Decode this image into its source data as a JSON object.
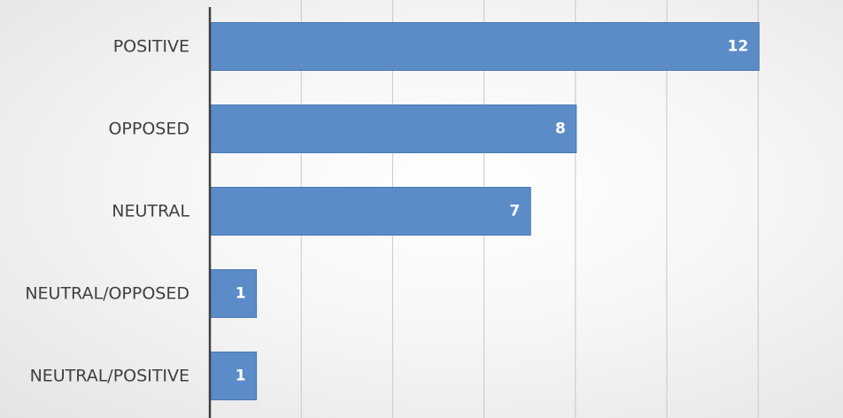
{
  "chart_data": {
    "type": "bar",
    "orientation": "horizontal",
    "categories": [
      "POSITIVE",
      "OPPOSED",
      "NEUTRAL",
      "NEUTRAL/OPPOSED",
      "NEUTRAL/POSITIVE"
    ],
    "values": [
      12,
      8,
      7,
      1,
      1
    ],
    "data_labels": [
      "12",
      "8",
      "7",
      "1",
      "1"
    ],
    "xlim": [
      0,
      14
    ],
    "grid_step": 2,
    "grid": true,
    "legend": "none",
    "colors": {
      "bar": "#5b8cc8",
      "bar_edge": "#4a78b4",
      "axis": "#404040",
      "grid": "#c8c8c8",
      "label": "#404040",
      "data_label": "#ffffff"
    }
  }
}
